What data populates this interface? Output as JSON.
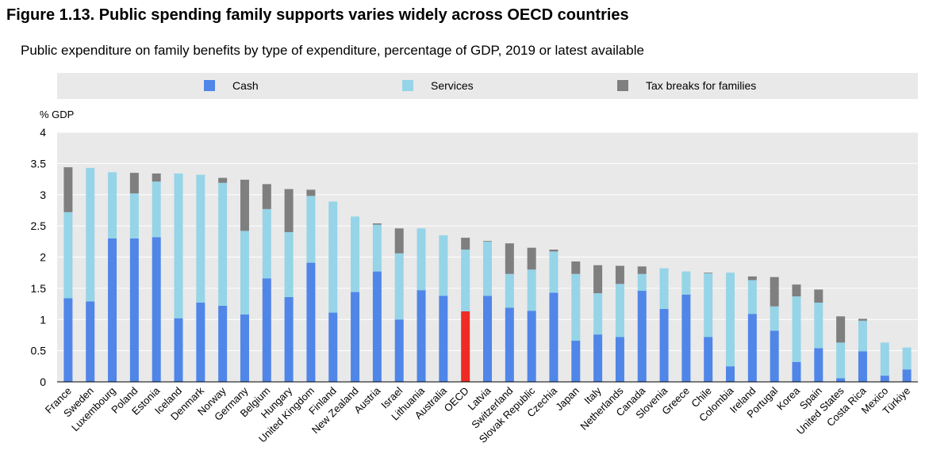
{
  "title": "Figure 1.13. Public spending family supports varies widely across OECD countries",
  "subtitle": "Public expenditure on family benefits by type of expenditure, percentage of GDP, 2019 or latest available",
  "colors": {
    "cash": "#4f86e8",
    "services": "#96d4e8",
    "tax": "#7f7f7f",
    "oecd_highlight": "#ee2b24",
    "legend_bg": "#e9e9e9",
    "plot_bg": "#e9e9e9",
    "grid": "#ffffff"
  },
  "chart_data": {
    "type": "bar",
    "stacked": true,
    "ylabel": "% GDP",
    "ylim": [
      0,
      4
    ],
    "yticks": [
      "0",
      "0.5",
      "1",
      "1.5",
      "2",
      "2.5",
      "3",
      "3.5",
      "4"
    ],
    "grid": true,
    "legend_position": "top",
    "categories": [
      "France",
      "Sweden",
      "Luxembourg",
      "Poland",
      "Estonia",
      "Iceland",
      "Denmark",
      "Norway",
      "Germany",
      "Belgium",
      "Hungary",
      "United Kingdom",
      "Finland",
      "New Zealand",
      "Austria",
      "Israel",
      "Lithuania",
      "Australia",
      "OECD",
      "Latvia",
      "Switzerland",
      "Slovak Republic",
      "Czechia",
      "Japan",
      "Italy",
      "Netherlands",
      "Canada",
      "Slovenia",
      "Greece",
      "Chile",
      "Colombia",
      "Ireland",
      "Portugal",
      "Korea",
      "Spain",
      "United States",
      "Costa Rica",
      "Mexico",
      "Türkiye"
    ],
    "highlight_category": "OECD",
    "series": [
      {
        "name": "Cash",
        "values": [
          1.34,
          1.29,
          2.3,
          2.3,
          2.32,
          1.02,
          1.27,
          1.22,
          1.08,
          1.66,
          1.36,
          1.91,
          1.11,
          1.44,
          1.77,
          1.0,
          1.47,
          1.38,
          1.13,
          1.38,
          1.19,
          1.14,
          1.43,
          0.66,
          0.76,
          0.72,
          1.46,
          1.17,
          1.4,
          0.72,
          0.25,
          1.09,
          0.82,
          0.32,
          0.54,
          0.06,
          0.49,
          0.1,
          0.2
        ]
      },
      {
        "name": "Services",
        "values": [
          1.38,
          2.14,
          1.06,
          0.72,
          0.89,
          2.32,
          2.05,
          1.97,
          1.34,
          1.11,
          1.04,
          1.07,
          1.78,
          1.21,
          0.75,
          1.06,
          0.99,
          0.97,
          0.99,
          0.87,
          0.54,
          0.66,
          0.66,
          1.07,
          0.66,
          0.85,
          0.27,
          0.65,
          0.37,
          1.02,
          1.5,
          0.54,
          0.39,
          1.05,
          0.73,
          0.57,
          0.49,
          0.53,
          0.35
        ]
      },
      {
        "name": "Tax breaks for families",
        "values": [
          0.72,
          0.0,
          0.0,
          0.33,
          0.13,
          0.0,
          0.0,
          0.08,
          0.82,
          0.4,
          0.69,
          0.1,
          0.0,
          0.0,
          0.02,
          0.4,
          0.0,
          0.0,
          0.19,
          0.01,
          0.49,
          0.35,
          0.03,
          0.2,
          0.45,
          0.29,
          0.12,
          0.0,
          0.0,
          0.01,
          0.0,
          0.06,
          0.47,
          0.19,
          0.21,
          0.42,
          0.03,
          0.0,
          0.0
        ]
      }
    ]
  }
}
